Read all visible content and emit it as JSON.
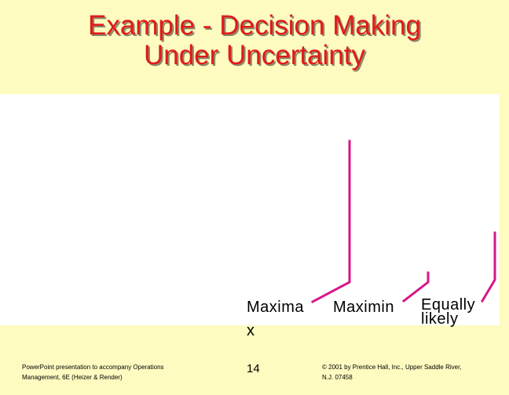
{
  "slide": {
    "title_line1": "Example - Decision Making",
    "title_line2": "Under Uncertainty"
  },
  "labels": {
    "maximax_line1": "Maxima",
    "maximax_line2": "x",
    "maximin": "Maximin",
    "equally_line1": "Equally",
    "equally_line2": "likely"
  },
  "footer": {
    "left_line1": "PowerPoint presentation to accompany Operations",
    "left_line2": "Management, 6E (Heizer & Render)",
    "page_number": "14",
    "right_line1": "© 2001 by Prentice Hall, Inc., Upper Saddle River,",
    "right_line2": "N.J. 07458"
  },
  "colors": {
    "background": "#fdfbc0",
    "title": "#e21a1a",
    "arrow": "#d6178a"
  }
}
